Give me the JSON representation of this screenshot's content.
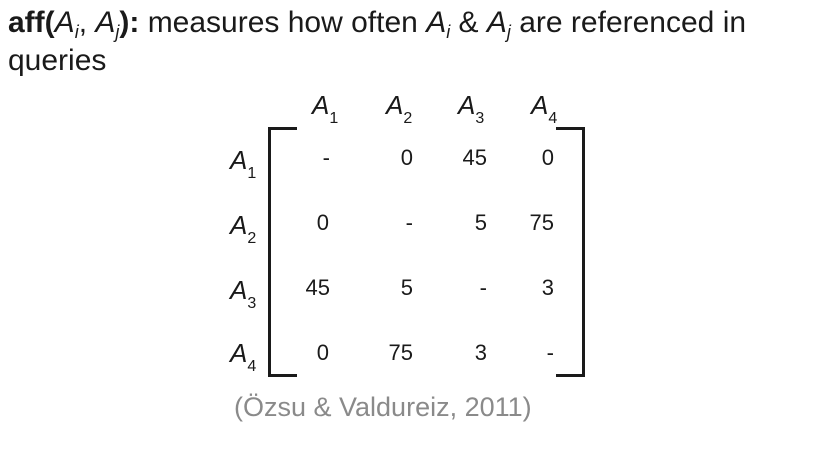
{
  "heading": {
    "func_name": "aff",
    "open_paren": "(",
    "arg1_letter": "A",
    "arg1_sub": "i",
    "comma": ", ",
    "arg2_letter": "A",
    "arg2_sub": "j",
    "close_paren_colon": "):",
    "text_part1": " measures how often ",
    "mid_letter1": "A",
    "mid_sub1": "i",
    "amp": " & ",
    "mid_letter2": "A",
    "mid_sub2": "j",
    "text_part2": " are referenced in queries"
  },
  "matrix": {
    "attribute_letter": "A",
    "columns": [
      {
        "sub": "1"
      },
      {
        "sub": "2"
      },
      {
        "sub": "3"
      },
      {
        "sub": "4"
      }
    ],
    "rows": [
      {
        "sub": "1",
        "cells": [
          "-",
          "0",
          "45",
          "0"
        ]
      },
      {
        "sub": "2",
        "cells": [
          "0",
          "-",
          "5",
          "75"
        ]
      },
      {
        "sub": "3",
        "cells": [
          "45",
          "5",
          "-",
          "3"
        ]
      },
      {
        "sub": "4",
        "cells": [
          "0",
          "75",
          "3",
          "-"
        ]
      }
    ]
  },
  "citation": "(Özsu & Valdureiz, 2011)"
}
